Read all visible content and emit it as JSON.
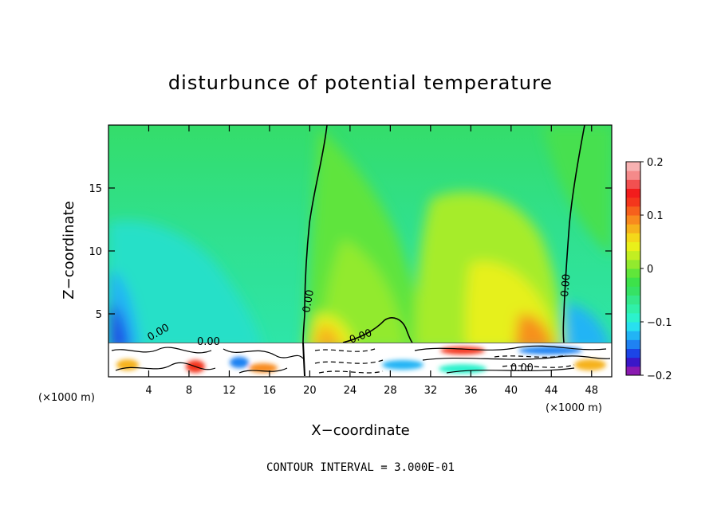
{
  "chart_data": {
    "type": "heatmap",
    "title": "disturbunce of potential temperature",
    "xlabel": "X−coordinate",
    "ylabel": "Z−coordinate",
    "x_unit_label": "(×1000 m)",
    "y_unit_label": "(×1000 m)",
    "xlim": [
      0,
      50
    ],
    "ylim": [
      0,
      20
    ],
    "x_ticks": [
      4,
      8,
      12,
      16,
      20,
      24,
      28,
      32,
      36,
      40,
      44,
      48
    ],
    "y_ticks": [
      5,
      10,
      15
    ],
    "colorbar": {
      "range": [
        -0.2,
        0.2
      ],
      "tick_values": [
        0.2,
        0.1,
        0,
        -0.1,
        -0.2
      ],
      "tick_labels": [
        "0.2",
        "0.1",
        "0",
        "−0.1",
        "−0.2"
      ],
      "colors": [
        "#8a1ab0",
        "#3a17c8",
        "#1c45e6",
        "#1f82f2",
        "#22b4f5",
        "#28e0ef",
        "#2cf2cc",
        "#30f0a8",
        "#34e88a",
        "#36e264",
        "#3de24a",
        "#60e63a",
        "#92ea2e",
        "#c2ee22",
        "#eaf01a",
        "#f4d81a",
        "#f6b21c",
        "#f88a1e",
        "#f6601c",
        "#f4361c",
        "#f21c1c",
        "#f25050",
        "#f58a8a",
        "#f8b2b2"
      ]
    },
    "contour_labels": [
      "0.00",
      "0.00",
      "0.00",
      "0.00",
      "0.00",
      "0.00"
    ],
    "footer": "CONTOUR INTERVAL = 3.000E-01"
  }
}
